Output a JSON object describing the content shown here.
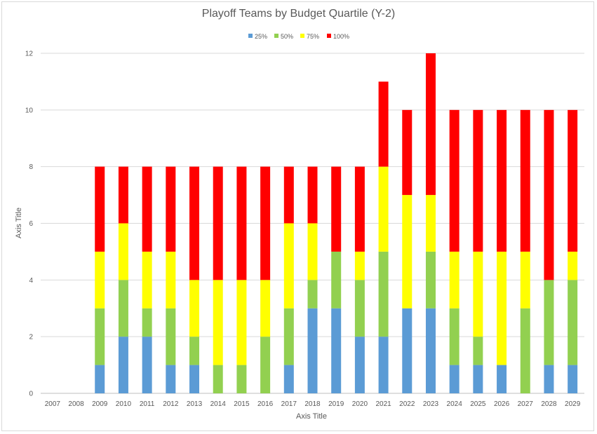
{
  "chart_data": {
    "type": "bar",
    "stacked": true,
    "title": "Playoff Teams by Budget Quartile (Y-2)",
    "xlabel": "Axis Title",
    "ylabel": "Axis Title",
    "ylim": [
      0,
      12
    ],
    "yticks": [
      0,
      2,
      4,
      6,
      8,
      10,
      12
    ],
    "grid": true,
    "legend_position": "top",
    "categories": [
      "2007",
      "2008",
      "2009",
      "2010",
      "2011",
      "2012",
      "2013",
      "2014",
      "2015",
      "2016",
      "2017",
      "2018",
      "2019",
      "2020",
      "2021",
      "2022",
      "2023",
      "2024",
      "2025",
      "2026",
      "2027",
      "2028",
      "2029"
    ],
    "series": [
      {
        "name": "25%",
        "color": "#5b9bd5",
        "values": [
          0,
          0,
          1,
          2,
          2,
          1,
          1,
          0,
          0,
          0,
          1,
          3,
          3,
          2,
          2,
          3,
          3,
          1,
          1,
          1,
          0,
          1,
          1
        ]
      },
      {
        "name": "50%",
        "color": "#92d050",
        "values": [
          0,
          0,
          2,
          2,
          1,
          2,
          1,
          1,
          1,
          2,
          2,
          1,
          2,
          2,
          3,
          0,
          2,
          2,
          1,
          0,
          3,
          3,
          3
        ]
      },
      {
        "name": "75%",
        "color": "#ffff00",
        "values": [
          0,
          0,
          2,
          2,
          2,
          2,
          2,
          3,
          3,
          2,
          3,
          2,
          0,
          1,
          3,
          4,
          2,
          2,
          3,
          4,
          2,
          0,
          1
        ]
      },
      {
        "name": "100%",
        "color": "#ff0000",
        "values": [
          0,
          0,
          3,
          2,
          3,
          3,
          4,
          4,
          4,
          4,
          2,
          2,
          3,
          3,
          3,
          3,
          5,
          5,
          5,
          5,
          5,
          6,
          5
        ]
      }
    ]
  }
}
